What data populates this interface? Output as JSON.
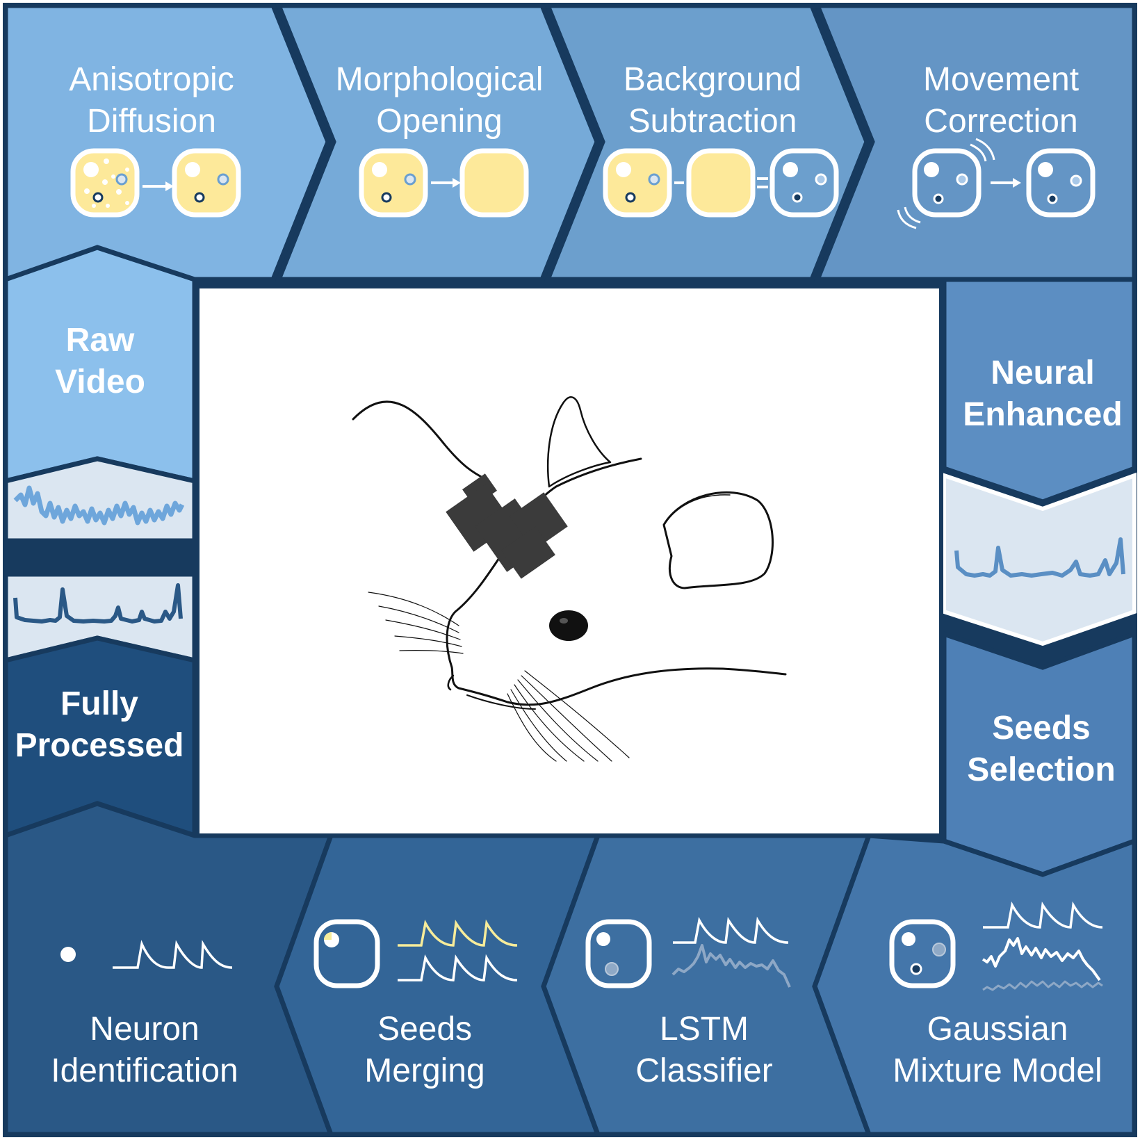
{
  "pipeline": {
    "top_steps": [
      {
        "line1": "Anisotropic",
        "line2": "Diffusion"
      },
      {
        "line1": "Morphological",
        "line2": "Opening"
      },
      {
        "line1": "Background",
        "line2": "Subtraction"
      },
      {
        "line1": "Movement",
        "line2": "Correction"
      }
    ],
    "bottom_steps": [
      {
        "line1": "Neuron",
        "line2": "Identification"
      },
      {
        "line1": "Seeds",
        "line2": "Merging"
      },
      {
        "line1": "LSTM",
        "line2": "Classifier"
      },
      {
        "line1": "Gaussian",
        "line2": "Mixture Model"
      }
    ],
    "stages": {
      "raw": {
        "line1": "Raw",
        "line2": "Video"
      },
      "neural": {
        "line1": "Neural",
        "line2": "Enhanced"
      },
      "seeds": {
        "line1": "Seeds",
        "line2": "Selection"
      },
      "full": {
        "line1": "Fully",
        "line2": "Processed"
      }
    }
  },
  "colors": {
    "border": "#173a5e",
    "top_1": "#80b4e2",
    "top_2": "#76aad8",
    "top_3": "#6c9fcd",
    "top_4": "#6495c5",
    "raw_video": "#8cc0ec",
    "neural_enhanced": "#5c8ec2",
    "seeds_selection": "#4e80b6",
    "bottom_1": "#2a5886",
    "bottom_2": "#336597",
    "bottom_3": "#3d6fa1",
    "bottom_4": "#4476aa",
    "fully_processed": "#1f4e7d",
    "cell_fill": "#fde99a",
    "highlight_yellow": "#f7ec9a",
    "trace_light": "#dbe6f1"
  },
  "icons": [
    "fov-cell-icon",
    "arrow-icon",
    "motion-arc-icon",
    "calcium-trace-icon",
    "mouse-illustration",
    "head-mounted-microscope-icon"
  ]
}
